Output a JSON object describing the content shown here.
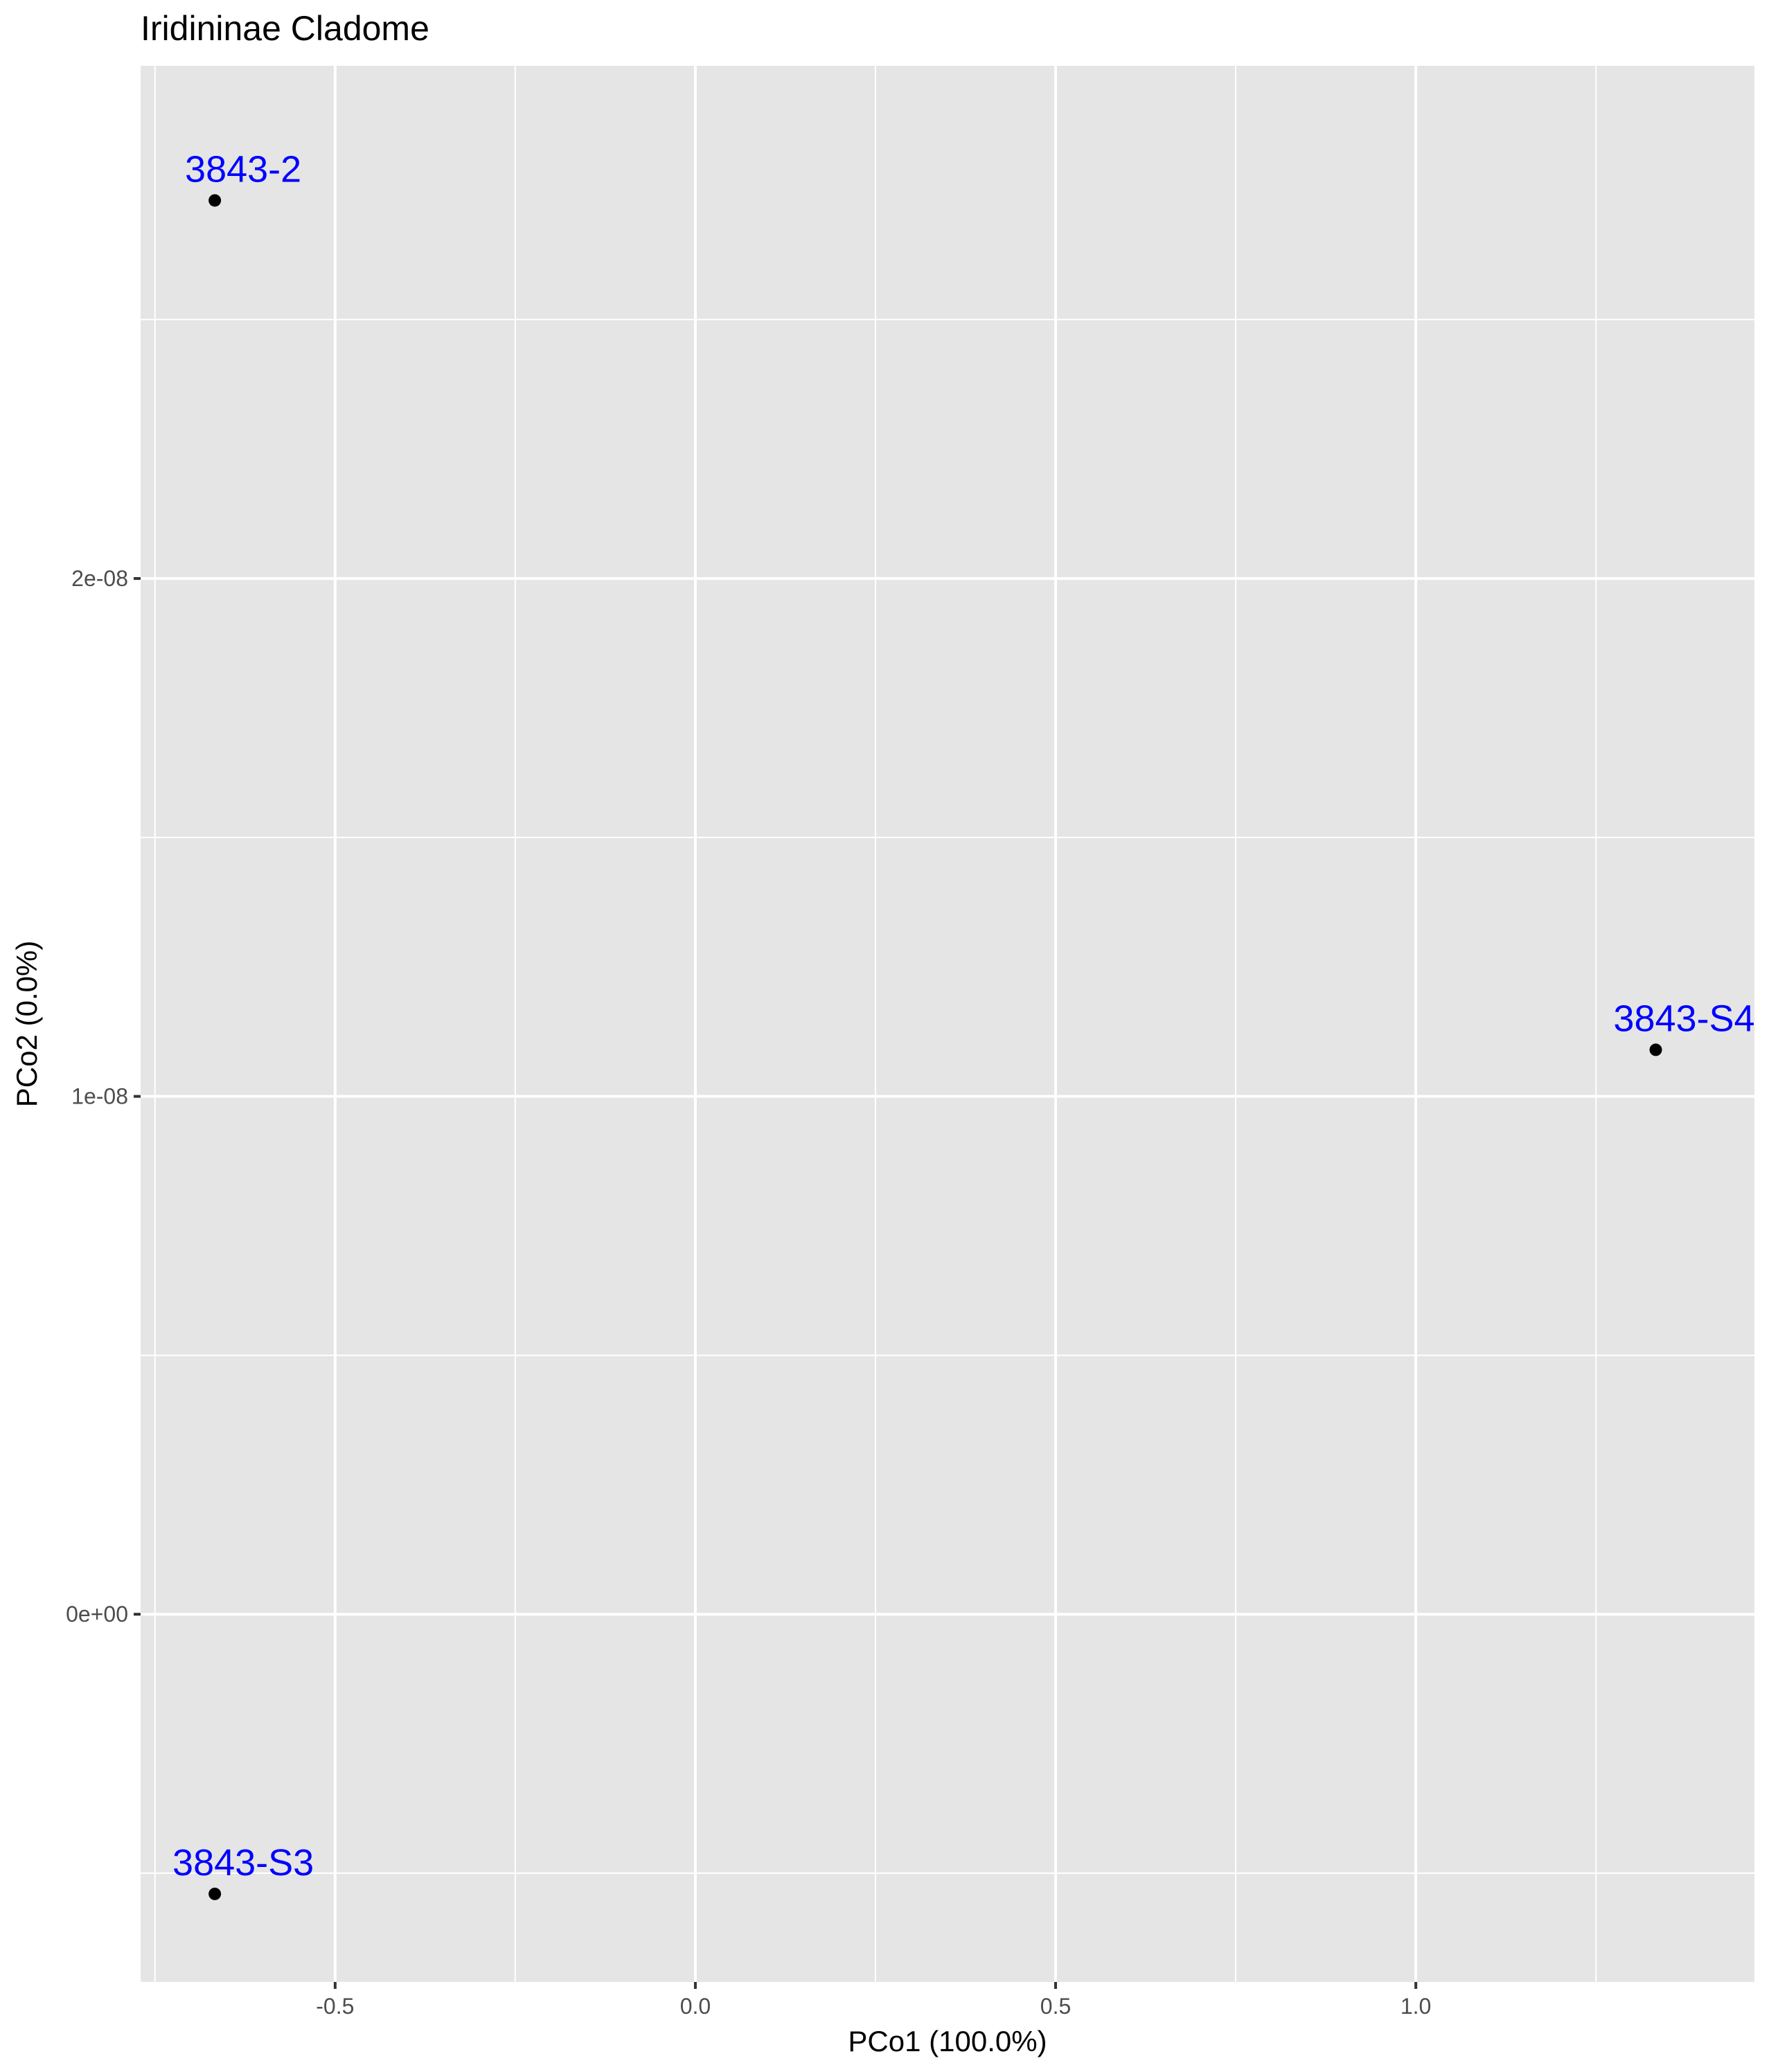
{
  "chart_data": {
    "type": "scatter",
    "title": "Iridininae Cladome",
    "xlabel": "PCo1 (100.0%)",
    "ylabel": "PCo2 (0.0%)",
    "xlim": [
      -0.77,
      1.47
    ],
    "ylim": [
      -7.1e-09,
      2.99e-08
    ],
    "x_major_ticks": [
      -0.5,
      0.0,
      0.5,
      1.0
    ],
    "x_tick_labels": [
      "-0.5",
      "0.0",
      "0.5",
      "1.0"
    ],
    "x_minor_ticks": [
      -0.75,
      -0.25,
      0.25,
      0.75,
      1.25
    ],
    "y_major_ticks": [
      0,
      1e-08,
      2e-08
    ],
    "y_tick_labels": [
      "0e+00",
      "1e-08",
      "2e-08"
    ],
    "y_minor_ticks": [
      -5e-09,
      5e-09,
      1.5e-08,
      2.5e-08
    ],
    "grid": true,
    "panel_color": "#e5e5e5",
    "grid_color": "#ffffff",
    "point_color": "#000000",
    "label_color": "#0000ff",
    "points": [
      {
        "label": "3843-2",
        "x": -0.667,
        "y": 2.73e-08
      },
      {
        "label": "3843-S4",
        "x": 1.333,
        "y": 1.09e-08
      },
      {
        "label": "3843-S3",
        "x": -0.667,
        "y": -5.4e-09
      }
    ]
  }
}
